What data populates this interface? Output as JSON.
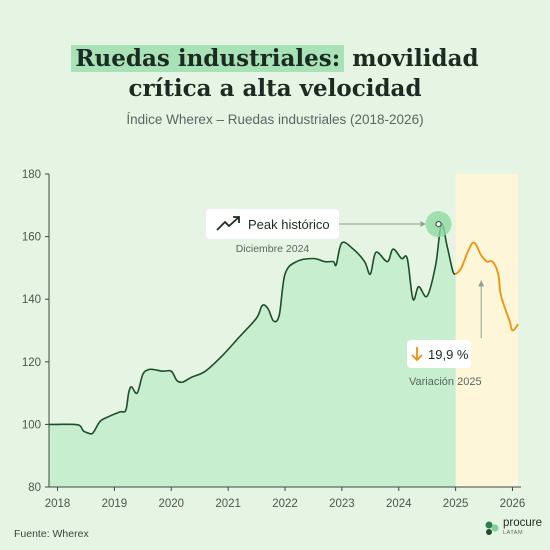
{
  "title_highlight": "Ruedas industriales:",
  "title_rest_line1": " movilidad",
  "title_line2": "crítica a alta velocidad",
  "subtitle": "Índice Wherex – Ruedas industriales (2018-2026)",
  "source": "Fuente: Wherex",
  "logo": {
    "name": "procure",
    "sub": "LATAM"
  },
  "colors": {
    "historical_line": "#1e4d2b",
    "historical_fill": "#c7efcf",
    "forecast_line": "#f0900c",
    "forecast_fill": "#fdf6d9",
    "peak_marker": "#8ed9a0"
  },
  "chart_data": {
    "type": "line",
    "ylim": [
      80,
      180
    ],
    "yticks": [
      80,
      100,
      120,
      140,
      160,
      180
    ],
    "xlim": [
      2017.85,
      2026.15
    ],
    "xticks": [
      "2018",
      "2019",
      "2020",
      "2021",
      "2022",
      "2023",
      "2024",
      "2025",
      "2026"
    ],
    "series": [
      {
        "type": "historical",
        "x": [
          2017.85,
          2018.0,
          2018.3,
          2018.4,
          2018.45,
          2018.5,
          2018.6,
          2018.65,
          2018.75,
          2018.9,
          2019.1,
          2019.2,
          2019.25,
          2019.3,
          2019.4,
          2019.5,
          2019.6,
          2019.7,
          2019.85,
          2020.0,
          2020.1,
          2020.2,
          2020.35,
          2020.6,
          2020.9,
          2021.2,
          2021.5,
          2021.6,
          2021.7,
          2021.8,
          2021.9,
          2022.0,
          2022.2,
          2022.5,
          2022.7,
          2022.85,
          2022.9,
          2023.0,
          2023.2,
          2023.4,
          2023.5,
          2023.6,
          2023.8,
          2023.9,
          2024.05,
          2024.15,
          2024.25,
          2024.35,
          2024.5,
          2024.65,
          2024.75,
          2024.85,
          2024.95,
          2025.0
        ],
        "y": [
          100,
          100,
          100,
          99.5,
          98,
          97.5,
          97,
          98,
          101,
          102.5,
          104,
          104.5,
          110,
          112,
          110,
          116,
          117.5,
          117.5,
          117,
          117,
          114,
          113.5,
          115,
          117,
          122,
          128,
          134,
          138,
          137,
          133,
          135,
          148,
          152,
          153,
          152,
          152,
          151,
          158,
          156,
          152,
          148,
          155,
          152,
          156,
          153,
          153,
          140,
          144,
          141,
          151,
          164,
          157,
          149,
          148
        ]
      },
      {
        "type": "forecast",
        "x": [
          2025.0,
          2025.1,
          2025.3,
          2025.45,
          2025.55,
          2025.65,
          2025.75,
          2025.8,
          2025.95,
          2026.0,
          2026.1
        ],
        "y": [
          148,
          150,
          158,
          154,
          152,
          152,
          148,
          141,
          133,
          130,
          132
        ]
      }
    ],
    "annotations": {
      "peak": {
        "x": 2024.7,
        "y": 164,
        "label": "Peak histórico",
        "date_label": "Diciembre 2024"
      },
      "variation": {
        "x": 2025.45,
        "label": "19,9 %",
        "sublabel": "Variación 2025",
        "direction": "down"
      }
    }
  }
}
